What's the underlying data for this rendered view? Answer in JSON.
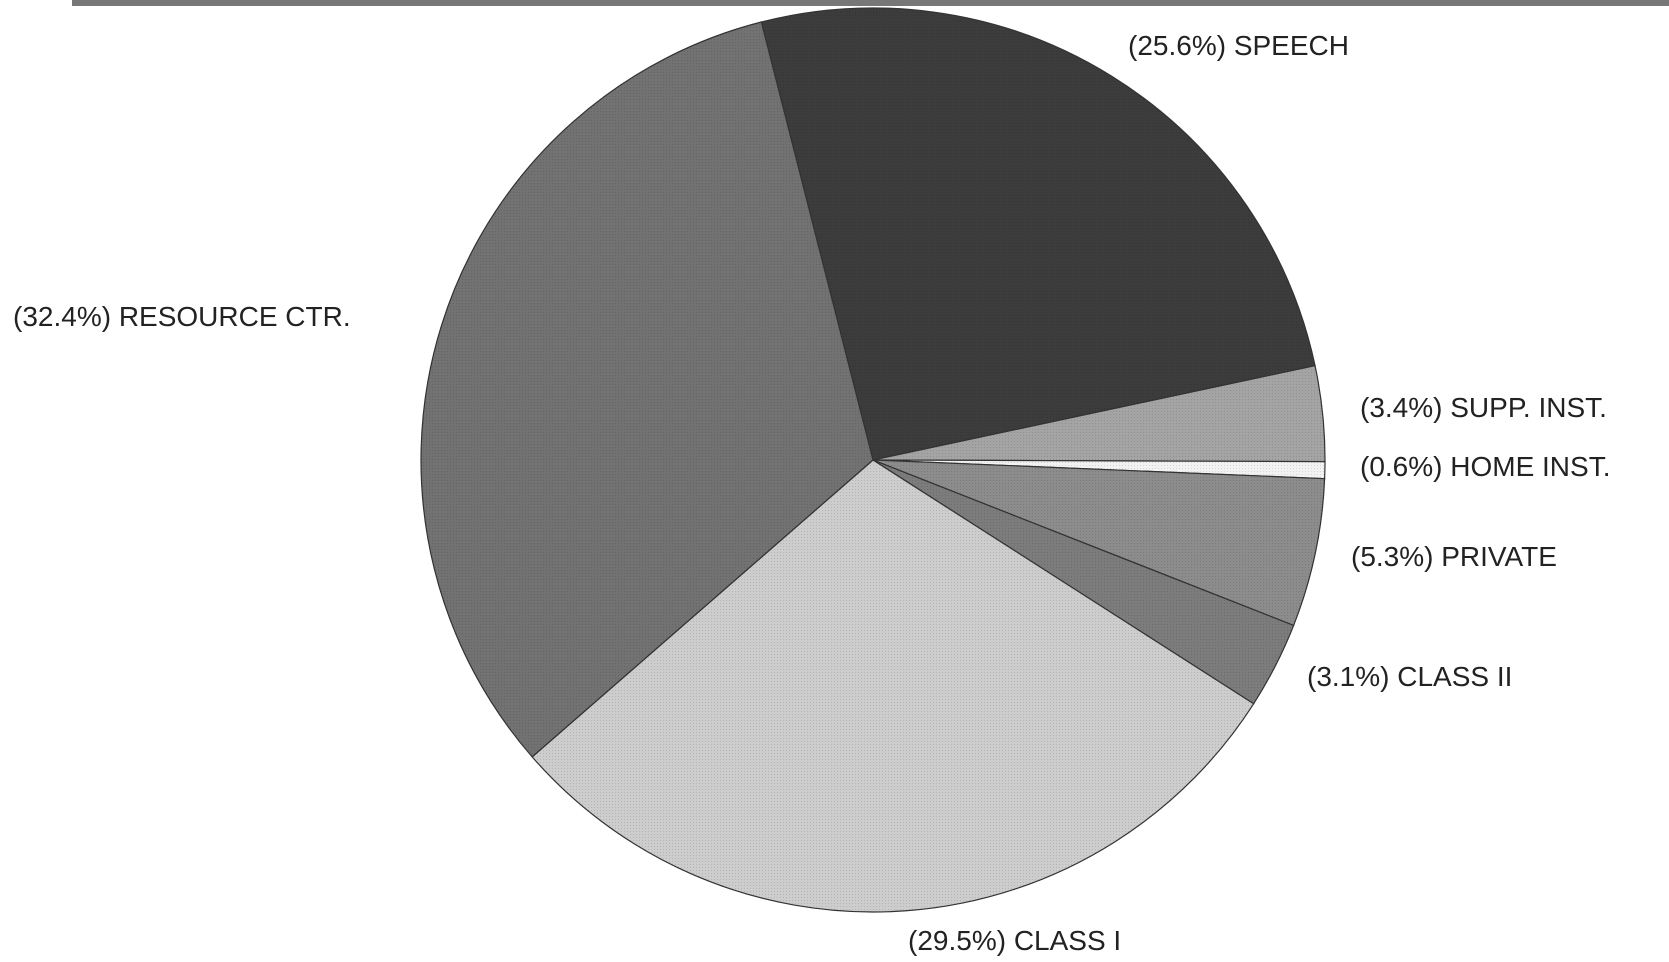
{
  "chart_data": {
    "type": "pie",
    "categories": [
      "SPEECH",
      "SUPP. INST.",
      "HOME INST.",
      "PRIVATE",
      "CLASS II",
      "CLASS I",
      "RESOURCE CTR."
    ],
    "values": [
      25.6,
      3.4,
      0.6,
      5.3,
      3.1,
      29.5,
      32.4
    ],
    "value_labels": [
      "(25.6%)",
      "(3.4%)",
      "(0.6%)",
      "(5.3%)",
      "(3.1%)",
      "(29.5%)",
      "(32.4%)"
    ],
    "colors": [
      "#3c3c3c",
      "#a4a4a4",
      "#f2f2f2",
      "#8c8c8c",
      "#7c7c7c",
      "#cdcdcd",
      "#727272"
    ]
  }
}
